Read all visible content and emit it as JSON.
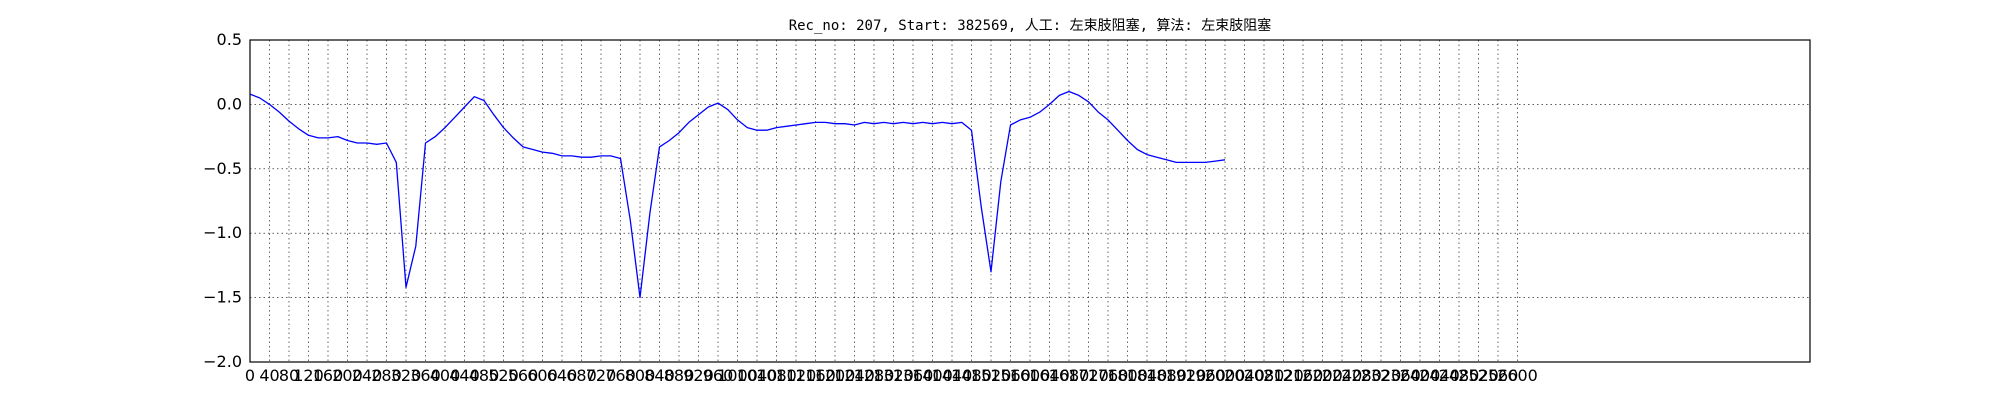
{
  "chart_data": {
    "type": "line",
    "title": "Rec_no: 207, Start: 382569, 人工: 左束肢阻塞, 算法: 左束肢阻塞",
    "xlabel": "",
    "ylabel": "",
    "xlim": [
      0,
      3200
    ],
    "ylim": [
      -2.0,
      0.5
    ],
    "grid": true,
    "x_ticks": [
      0,
      40,
      80,
      120,
      160,
      200,
      240,
      280,
      320,
      360,
      400,
      440,
      480,
      520,
      560,
      600,
      640,
      680,
      720,
      760,
      800,
      840,
      880,
      920,
      960,
      1000,
      1040,
      1080,
      1120,
      1160,
      1200,
      1240,
      1280,
      1320,
      1360,
      1400,
      1440,
      1480,
      1520,
      1560,
      1600,
      1640,
      1680,
      1720,
      1760,
      1800,
      1840,
      1880,
      1920,
      1960,
      2000,
      2040,
      2080,
      2120,
      2160,
      2200,
      2240,
      2280,
      2320,
      2360,
      2400,
      2440,
      2480,
      2520,
      2560,
      2600
    ],
    "x_tick_labels": [
      "0",
      "40",
      "80",
      "120",
      "160",
      "200",
      "240",
      "280",
      "320",
      "360",
      "400",
      "440",
      "480",
      "520",
      "560",
      "600",
      "640",
      "680",
      "720",
      "760",
      "800",
      "840",
      "880",
      "920",
      "960",
      "1000",
      "1040",
      "1080",
      "1120",
      "1160",
      "1200",
      "1240",
      "1280",
      "1320",
      "1360",
      "1400",
      "1440",
      "1480",
      "1520",
      "1560",
      "1600",
      "1640",
      "1680",
      "1720",
      "1760",
      "1800",
      "1840",
      "1880",
      "1920",
      "1960",
      "2000",
      "2040",
      "2080",
      "2120",
      "2160",
      "2200",
      "2240",
      "2280",
      "2320",
      "2360",
      "2400",
      "2440",
      "2480",
      "2520",
      "2560",
      "2600"
    ],
    "y_ticks": [
      0.5,
      0.0,
      -0.5,
      -1.0,
      -1.5,
      -2.0
    ],
    "y_tick_labels": [
      "0.5",
      "0.0",
      "−0.5",
      "−1.0",
      "−1.5",
      "−2.0"
    ],
    "colors": {
      "main": "#0000ff",
      "highlight": "#ff0000"
    },
    "series": [
      {
        "color": "#0000ff",
        "x": [
          0,
          20,
          40,
          60,
          80,
          100,
          120,
          140,
          160,
          180,
          200,
          220,
          240,
          260,
          280,
          300,
          320,
          340,
          360,
          380,
          400,
          420,
          440,
          460,
          480,
          500,
          520,
          540,
          560,
          580,
          600,
          620,
          640,
          660,
          680,
          700,
          720,
          740,
          760,
          780,
          800,
          820,
          840,
          860,
          880,
          900,
          920,
          940,
          960,
          980,
          1000,
          1020,
          1040,
          1060,
          1080,
          1100,
          1120,
          1140,
          1160,
          1180,
          1200
        ],
        "y": [
          0.08,
          0.05,
          0.0,
          -0.06,
          -0.13,
          -0.19,
          -0.24,
          -0.26,
          -0.26,
          -0.25,
          -0.28,
          -0.3,
          -0.3,
          -0.31,
          -0.3,
          -0.45,
          -1.42,
          -1.1,
          -0.3,
          -0.25,
          -0.18,
          -0.1,
          -0.02,
          0.06,
          0.03,
          -0.08,
          -0.18,
          -0.26,
          -0.33,
          -0.35,
          -0.37,
          -0.38,
          -0.4,
          -0.4,
          -0.41,
          -0.41,
          -0.4,
          -0.4,
          -0.42,
          -0.9,
          -1.5,
          -0.85,
          -0.33,
          -0.28,
          -0.22,
          -0.14,
          -0.08,
          -0.02,
          0.01,
          -0.04,
          -0.12,
          -0.18,
          -0.2,
          -0.2,
          -0.18,
          -0.17,
          -0.16,
          -0.15,
          -0.14,
          -0.14,
          -0.15
        ]
      },
      {
        "color": "#0000ff",
        "x": [
          1200,
          1220,
          1240,
          1260,
          1280,
          1300,
          1320,
          1340,
          1360,
          1380,
          1400,
          1420,
          1440,
          1460,
          1480,
          1500,
          1520,
          1540,
          1560,
          1580,
          1600,
          1620,
          1640,
          1660,
          1680,
          1700,
          1720,
          1740,
          1760,
          1780,
          1800,
          1820,
          1840,
          1860,
          1880,
          1900,
          1920,
          1940,
          1960,
          1980,
          2000
        ],
        "y": [
          -0.15,
          -0.15,
          -0.16,
          -0.14,
          -0.15,
          -0.14,
          -0.15,
          -0.14,
          -0.15,
          -0.14,
          -0.15,
          -0.14,
          -0.15,
          -0.14,
          -0.2,
          -0.8,
          -1.3,
          -0.6,
          -0.16,
          -0.12,
          -0.1,
          -0.06,
          0.0,
          0.07,
          0.1,
          0.07,
          0.02,
          -0.06,
          -0.12,
          -0.2,
          -0.28,
          -0.35,
          -0.39,
          -0.41,
          -0.43,
          -0.45,
          -0.45,
          -0.45,
          -0.45,
          -0.44,
          -0.43
        ]
      }
    ]
  }
}
